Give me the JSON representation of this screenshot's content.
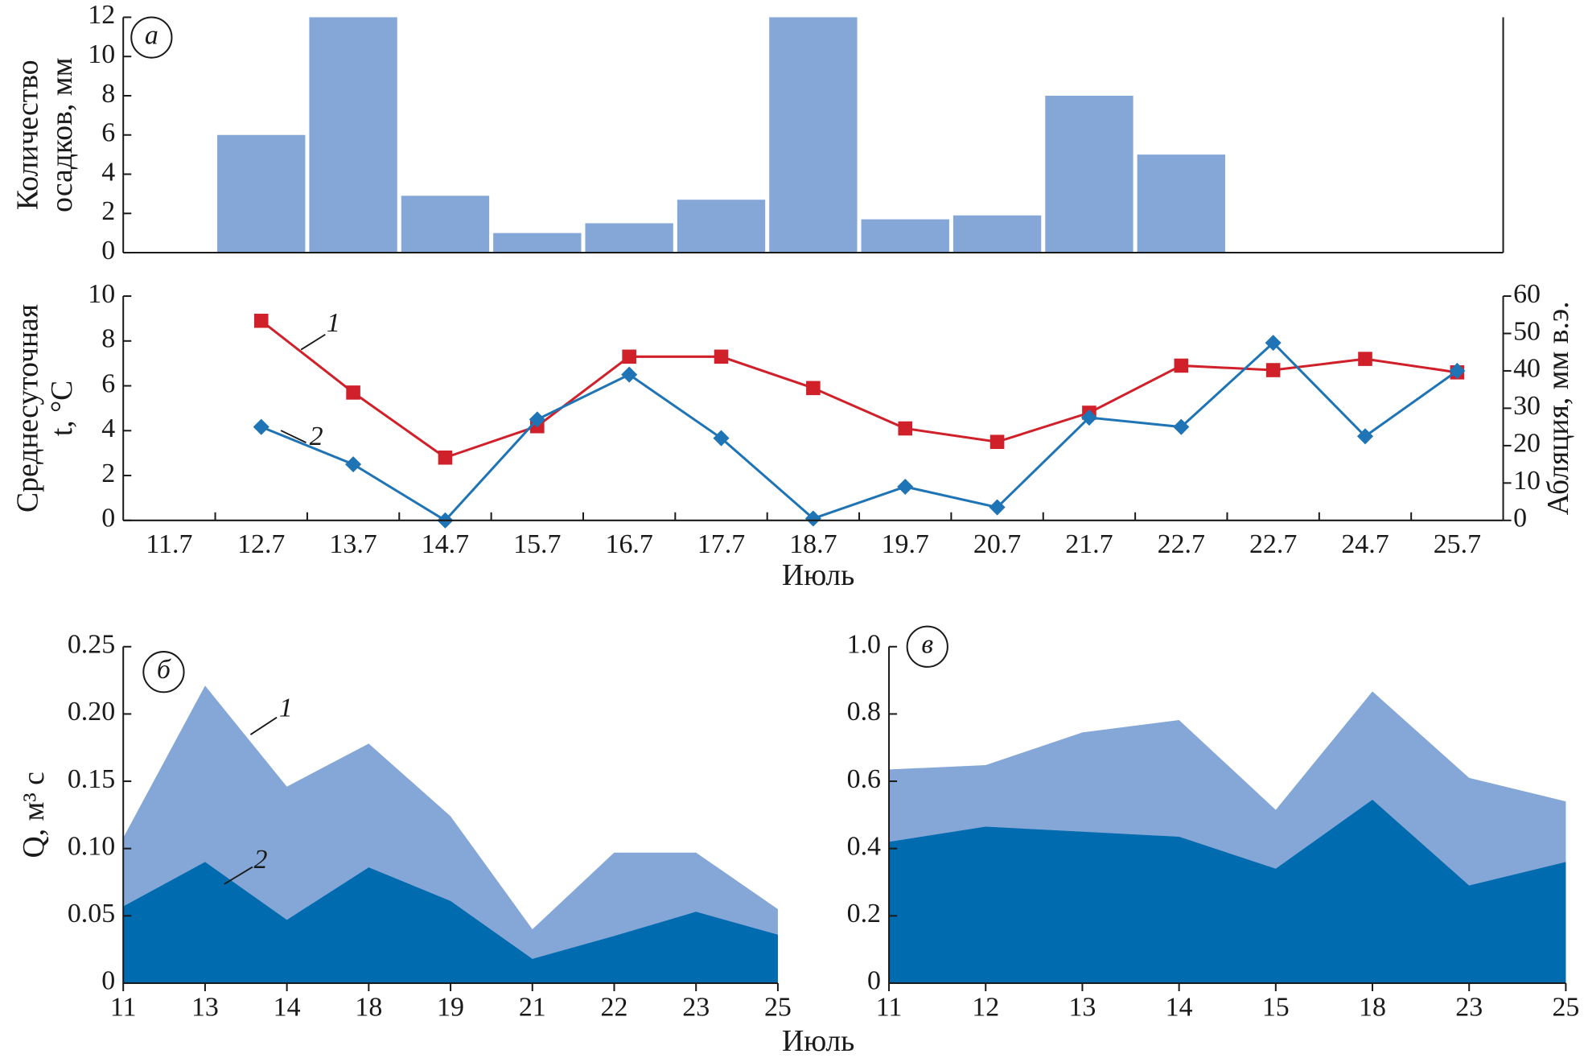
{
  "chart_data": [
    {
      "type": "bar",
      "annotation": "а",
      "ylabel": [
        "Количество",
        "осадков, мм"
      ],
      "values": [
        0,
        6,
        12,
        2.9,
        1,
        1.5,
        2.7,
        12,
        1.7,
        1.9,
        8,
        5,
        0,
        0,
        0
      ],
      "color": "#84a7d7",
      "ylim": [
        0,
        12
      ],
      "yticks": [
        0,
        2,
        4,
        6,
        8,
        10,
        12
      ]
    },
    {
      "type": "line",
      "ylabel": [
        "Среднесуточная",
        "t, °C"
      ],
      "y2label": "Абляция, мм в.э.",
      "xlabel": "Июль",
      "categories": [
        "11.7",
        "12.7",
        "13.7",
        "14.7",
        "15.7",
        "16.7",
        "17.7",
        "18.7",
        "19.7",
        "20.7",
        "21.7",
        "22.7",
        "22.7",
        "24.7",
        "25.7"
      ],
      "series": [
        {
          "name": "1",
          "color": "#d0202a",
          "marker": "square",
          "values": [
            null,
            8.9,
            5.7,
            2.8,
            4.2,
            7.3,
            7.3,
            5.9,
            4.1,
            3.5,
            4.8,
            6.9,
            6.7,
            7.2,
            6.6
          ]
        },
        {
          "name": "2",
          "color": "#1f74b6",
          "marker": "diamond",
          "axis": "y2",
          "values": [
            null,
            25,
            15,
            0,
            27,
            39,
            22,
            0.5,
            9,
            3.5,
            27.5,
            25,
            47.5,
            22.5,
            40
          ]
        }
      ],
      "ylim": [
        0,
        10
      ],
      "yticks": [
        0,
        2,
        4,
        6,
        8,
        10
      ],
      "y2lim": [
        0,
        60
      ],
      "y2ticks": [
        0,
        10,
        20,
        30,
        40,
        50,
        60
      ]
    },
    {
      "type": "area",
      "annotation": "б",
      "ylabel": "Q, м³ с",
      "xlabel": "Июль",
      "categories": [
        "11",
        "13",
        "14",
        "18",
        "19",
        "21",
        "22",
        "23",
        "25"
      ],
      "series": [
        {
          "name": "1",
          "color": "#84a7d7",
          "values": [
            0.108,
            0.221,
            0.146,
            0.178,
            0.124,
            0.04,
            0.097,
            0.097,
            0.055
          ]
        },
        {
          "name": "2",
          "color": "#006bae",
          "values": [
            0.057,
            0.09,
            0.047,
            0.086,
            0.061,
            0.018,
            0.035,
            0.053,
            0.036
          ]
        }
      ],
      "ylim": [
        0,
        0.25
      ],
      "yticks": [
        0,
        0.05,
        {
          "value": 0.1,
          "label": "0.10"
        },
        0.15,
        {
          "value": 0.2,
          "label": "0.20"
        },
        0.25
      ]
    },
    {
      "type": "area",
      "annotation": "в",
      "categories": [
        "11",
        "12",
        "13",
        "14",
        "15",
        "18",
        "23",
        "25"
      ],
      "series": [
        {
          "color": "#84a7d7",
          "values": [
            0.635,
            0.648,
            0.745,
            0.782,
            0.515,
            0.867,
            0.61,
            0.54
          ]
        },
        {
          "color": "#006bae",
          "values": [
            0.42,
            0.465,
            0.45,
            0.435,
            0.34,
            0.545,
            0.29,
            0.36
          ]
        }
      ],
      "ylim": [
        0,
        1
      ],
      "yticks": [
        0,
        0.2,
        0.4,
        0.6,
        0.8,
        {
          "value": 1,
          "label": "1.0"
        }
      ]
    }
  ]
}
